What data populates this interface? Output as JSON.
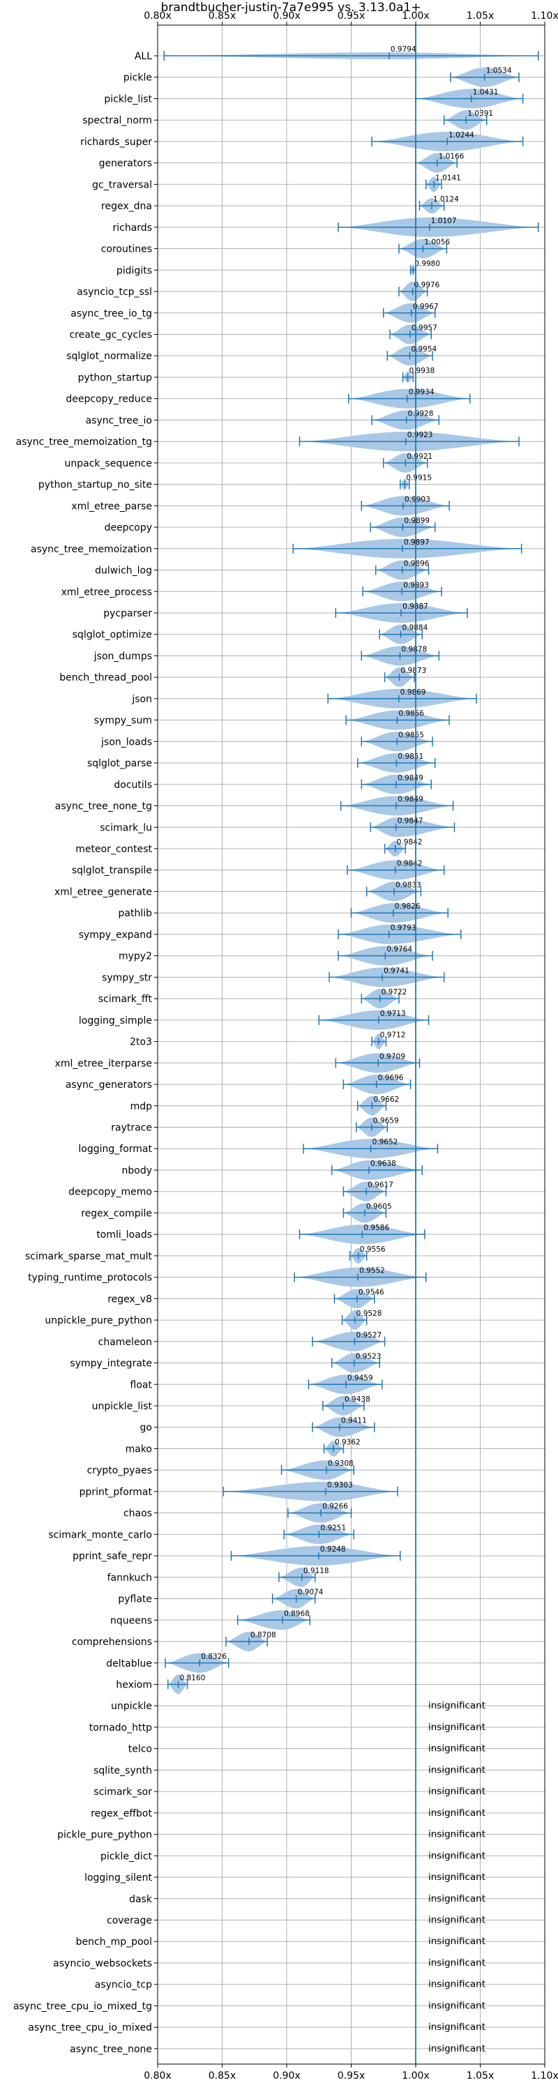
{
  "chart_data": {
    "type": "violin",
    "title": "brandtbucher-justin-7a7e995 vs. 3.13.0a1+",
    "xlim": [
      0.8,
      1.1
    ],
    "x_ticks": [
      0.8,
      0.85,
      0.9,
      0.95,
      1.0,
      1.05,
      1.1
    ],
    "x_tick_labels": [
      "0.80x",
      "0.85x",
      "0.90x",
      "0.95x",
      "1.00x",
      "1.05x",
      "1.10x"
    ],
    "reference_line": 1.0,
    "grid": true,
    "colors": {
      "violin": "#a9c8e6",
      "whisker": "#1f77b4",
      "reference": "#1f77b4",
      "grid": "#b0b0b0"
    },
    "insignificant_text": "insignificant",
    "benchmarks": [
      {
        "name": "ALL",
        "value": 0.9794,
        "label": "0.9794",
        "min": 0.805,
        "max": 1.095,
        "width": 0.35
      },
      {
        "name": "pickle",
        "value": 1.0534,
        "label": "1.0534",
        "min": 1.027,
        "max": 1.08,
        "width": 1.0
      },
      {
        "name": "pickle_list",
        "value": 1.0431,
        "label": "1.0431",
        "min": 1.0,
        "max": 1.083,
        "width": 1.0
      },
      {
        "name": "spectral_norm",
        "value": 1.0391,
        "label": "1.0391",
        "min": 1.022,
        "max": 1.055,
        "width": 1.0
      },
      {
        "name": "richards_super",
        "value": 1.0244,
        "label": "1.0244",
        "min": 0.966,
        "max": 1.083,
        "width": 1.0
      },
      {
        "name": "generators",
        "value": 1.0166,
        "label": "1.0166",
        "min": 1.0,
        "max": 1.032,
        "width": 1.0
      },
      {
        "name": "gc_traversal",
        "value": 1.0141,
        "label": "1.0141",
        "min": 1.008,
        "max": 1.02,
        "width": 0.8
      },
      {
        "name": "regex_dna",
        "value": 1.0124,
        "label": "1.0124",
        "min": 1.003,
        "max": 1.022,
        "width": 0.8
      },
      {
        "name": "richards",
        "value": 1.0107,
        "label": "1.0107",
        "min": 0.94,
        "max": 1.095,
        "width": 1.0
      },
      {
        "name": "coroutines",
        "value": 1.0056,
        "label": "1.0056",
        "min": 0.987,
        "max": 1.024,
        "width": 1.0
      },
      {
        "name": "pidigits",
        "value": 0.998,
        "label": "0.9980",
        "min": 0.996,
        "max": 1.0,
        "width": 0.6
      },
      {
        "name": "asyncio_tcp_ssl",
        "value": 0.9976,
        "label": "0.9976",
        "min": 0.987,
        "max": 1.009,
        "width": 1.0
      },
      {
        "name": "async_tree_io_tg",
        "value": 0.9967,
        "label": "0.9967",
        "min": 0.975,
        "max": 1.015,
        "width": 1.0
      },
      {
        "name": "create_gc_cycles",
        "value": 0.9957,
        "label": "0.9957",
        "min": 0.98,
        "max": 1.012,
        "width": 1.0
      },
      {
        "name": "sqlglot_normalize",
        "value": 0.9954,
        "label": "0.9954",
        "min": 0.978,
        "max": 1.013,
        "width": 1.0
      },
      {
        "name": "python_startup",
        "value": 0.9938,
        "label": "0.9938",
        "min": 0.99,
        "max": 0.998,
        "width": 0.6
      },
      {
        "name": "deepcopy_reduce",
        "value": 0.9934,
        "label": "0.9934",
        "min": 0.948,
        "max": 1.042,
        "width": 1.0
      },
      {
        "name": "async_tree_io",
        "value": 0.9928,
        "label": "0.9928",
        "min": 0.966,
        "max": 1.018,
        "width": 1.0
      },
      {
        "name": "async_tree_memoization_tg",
        "value": 0.9923,
        "label": "0.9923",
        "min": 0.91,
        "max": 1.08,
        "width": 1.0
      },
      {
        "name": "unpack_sequence",
        "value": 0.9921,
        "label": "0.9921",
        "min": 0.975,
        "max": 1.009,
        "width": 1.0
      },
      {
        "name": "python_startup_no_site",
        "value": 0.9915,
        "label": "0.9915",
        "min": 0.988,
        "max": 0.995,
        "width": 0.6
      },
      {
        "name": "xml_etree_parse",
        "value": 0.9903,
        "label": "0.9903",
        "min": 0.958,
        "max": 1.026,
        "width": 1.0
      },
      {
        "name": "deepcopy",
        "value": 0.9899,
        "label": "0.9899",
        "min": 0.965,
        "max": 1.015,
        "width": 1.0
      },
      {
        "name": "async_tree_memoization",
        "value": 0.9897,
        "label": "0.9897",
        "min": 0.905,
        "max": 1.082,
        "width": 1.0
      },
      {
        "name": "dulwich_log",
        "value": 0.9896,
        "label": "0.9896",
        "min": 0.969,
        "max": 1.01,
        "width": 1.0
      },
      {
        "name": "xml_etree_process",
        "value": 0.9893,
        "label": "0.9893",
        "min": 0.959,
        "max": 1.02,
        "width": 1.0
      },
      {
        "name": "pycparser",
        "value": 0.9887,
        "label": "0.9887",
        "min": 0.938,
        "max": 1.04,
        "width": 1.0
      },
      {
        "name": "sqlglot_optimize",
        "value": 0.9884,
        "label": "0.9884",
        "min": 0.972,
        "max": 1.005,
        "width": 1.0
      },
      {
        "name": "json_dumps",
        "value": 0.9878,
        "label": "0.9878",
        "min": 0.958,
        "max": 1.018,
        "width": 1.0
      },
      {
        "name": "bench_thread_pool",
        "value": 0.9873,
        "label": "0.9873",
        "min": 0.976,
        "max": 0.999,
        "width": 1.0
      },
      {
        "name": "json",
        "value": 0.9869,
        "label": "0.9869",
        "min": 0.932,
        "max": 1.047,
        "width": 1.0
      },
      {
        "name": "sympy_sum",
        "value": 0.9856,
        "label": "0.9856",
        "min": 0.946,
        "max": 1.026,
        "width": 1.0
      },
      {
        "name": "json_loads",
        "value": 0.9855,
        "label": "0.9855",
        "min": 0.958,
        "max": 1.013,
        "width": 1.0
      },
      {
        "name": "sqlglot_parse",
        "value": 0.9851,
        "label": "0.9851",
        "min": 0.955,
        "max": 1.015,
        "width": 1.0
      },
      {
        "name": "docutils",
        "value": 0.9849,
        "label": "0.9849",
        "min": 0.958,
        "max": 1.012,
        "width": 1.0
      },
      {
        "name": "async_tree_none_tg",
        "value": 0.9849,
        "label": "0.9849",
        "min": 0.942,
        "max": 1.029,
        "width": 1.0
      },
      {
        "name": "scimark_lu",
        "value": 0.9847,
        "label": "0.9847",
        "min": 0.965,
        "max": 1.03,
        "width": 1.0
      },
      {
        "name": "meteor_contest",
        "value": 0.9842,
        "label": "0.9842",
        "min": 0.976,
        "max": 0.992,
        "width": 0.8
      },
      {
        "name": "sqlglot_transpile",
        "value": 0.9842,
        "label": "0.9842",
        "min": 0.947,
        "max": 1.022,
        "width": 1.0
      },
      {
        "name": "xml_etree_generate",
        "value": 0.9833,
        "label": "0.9833",
        "min": 0.962,
        "max": 1.004,
        "width": 1.0
      },
      {
        "name": "pathlib",
        "value": 0.9826,
        "label": "0.9826",
        "min": 0.95,
        "max": 1.025,
        "width": 1.0
      },
      {
        "name": "sympy_expand",
        "value": 0.9793,
        "label": "0.9793",
        "min": 0.94,
        "max": 1.035,
        "width": 1.0
      },
      {
        "name": "mypy2",
        "value": 0.9764,
        "label": "0.9764",
        "min": 0.94,
        "max": 1.013,
        "width": 1.0
      },
      {
        "name": "sympy_str",
        "value": 0.9741,
        "label": "0.9741",
        "min": 0.933,
        "max": 1.022,
        "width": 1.0
      },
      {
        "name": "scimark_fft",
        "value": 0.9722,
        "label": "0.9722",
        "min": 0.958,
        "max": 0.987,
        "width": 1.0
      },
      {
        "name": "logging_simple",
        "value": 0.9713,
        "label": "0.9713",
        "min": 0.925,
        "max": 1.01,
        "width": 1.0
      },
      {
        "name": "2to3",
        "value": 0.9712,
        "label": "0.9712",
        "min": 0.966,
        "max": 0.977,
        "width": 0.8
      },
      {
        "name": "xml_etree_iterparse",
        "value": 0.9709,
        "label": "0.9709",
        "min": 0.938,
        "max": 1.003,
        "width": 1.0
      },
      {
        "name": "async_generators",
        "value": 0.9696,
        "label": "0.9696",
        "min": 0.944,
        "max": 0.996,
        "width": 1.0
      },
      {
        "name": "mdp",
        "value": 0.9662,
        "label": "0.9662",
        "min": 0.955,
        "max": 0.977,
        "width": 1.0
      },
      {
        "name": "raytrace",
        "value": 0.9659,
        "label": "0.9659",
        "min": 0.954,
        "max": 0.978,
        "width": 1.0
      },
      {
        "name": "logging_format",
        "value": 0.9652,
        "label": "0.9652",
        "min": 0.913,
        "max": 1.017,
        "width": 1.0
      },
      {
        "name": "nbody",
        "value": 0.9638,
        "label": "0.9638",
        "min": 0.935,
        "max": 1.005,
        "width": 1.0
      },
      {
        "name": "deepcopy_memo",
        "value": 0.9617,
        "label": "0.9617",
        "min": 0.944,
        "max": 0.977,
        "width": 1.0
      },
      {
        "name": "regex_compile",
        "value": 0.9605,
        "label": "0.9605",
        "min": 0.944,
        "max": 0.977,
        "width": 1.0
      },
      {
        "name": "tomli_loads",
        "value": 0.9586,
        "label": "0.9586",
        "min": 0.91,
        "max": 1.007,
        "width": 1.0
      },
      {
        "name": "scimark_sparse_mat_mult",
        "value": 0.9556,
        "label": "0.9556",
        "min": 0.949,
        "max": 0.962,
        "width": 0.8
      },
      {
        "name": "typing_runtime_protocols",
        "value": 0.9552,
        "label": "0.9552",
        "min": 0.906,
        "max": 1.008,
        "width": 1.0
      },
      {
        "name": "regex_v8",
        "value": 0.9546,
        "label": "0.9546",
        "min": 0.937,
        "max": 0.968,
        "width": 1.0
      },
      {
        "name": "unpickle_pure_python",
        "value": 0.9528,
        "label": "0.9528",
        "min": 0.943,
        "max": 0.962,
        "width": 1.0
      },
      {
        "name": "chameleon",
        "value": 0.9527,
        "label": "0.9527",
        "min": 0.92,
        "max": 0.976,
        "width": 1.0
      },
      {
        "name": "sympy_integrate",
        "value": 0.9523,
        "label": "0.9523",
        "min": 0.935,
        "max": 0.972,
        "width": 1.0
      },
      {
        "name": "float",
        "value": 0.9459,
        "label": "0.9459",
        "min": 0.917,
        "max": 0.974,
        "width": 1.0
      },
      {
        "name": "unpickle_list",
        "value": 0.9438,
        "label": "0.9438",
        "min": 0.928,
        "max": 0.96,
        "width": 1.0
      },
      {
        "name": "go",
        "value": 0.9411,
        "label": "0.9411",
        "min": 0.92,
        "max": 0.968,
        "width": 1.0
      },
      {
        "name": "mako",
        "value": 0.9362,
        "label": "0.9362",
        "min": 0.929,
        "max": 0.944,
        "width": 0.8
      },
      {
        "name": "crypto_pyaes",
        "value": 0.9308,
        "label": "0.9308",
        "min": 0.896,
        "max": 0.952,
        "width": 1.0
      },
      {
        "name": "pprint_pformat",
        "value": 0.9303,
        "label": "0.9303",
        "min": 0.851,
        "max": 0.986,
        "width": 1.0
      },
      {
        "name": "chaos",
        "value": 0.9266,
        "label": "0.9266",
        "min": 0.901,
        "max": 0.95,
        "width": 1.0
      },
      {
        "name": "scimark_monte_carlo",
        "value": 0.9251,
        "label": "0.9251",
        "min": 0.898,
        "max": 0.952,
        "width": 1.0
      },
      {
        "name": "pprint_safe_repr",
        "value": 0.9248,
        "label": "0.9248",
        "min": 0.857,
        "max": 0.988,
        "width": 1.0
      },
      {
        "name": "fannkuch",
        "value": 0.9118,
        "label": "0.9118",
        "min": 0.894,
        "max": 0.922,
        "width": 1.0
      },
      {
        "name": "pyflate",
        "value": 0.9074,
        "label": "0.9074",
        "min": 0.889,
        "max": 0.922,
        "width": 1.0
      },
      {
        "name": "nqueens",
        "value": 0.8968,
        "label": "0.8968",
        "min": 0.862,
        "max": 0.918,
        "width": 1.0
      },
      {
        "name": "comprehensions",
        "value": 0.8708,
        "label": "0.8708",
        "min": 0.853,
        "max": 0.885,
        "width": 1.0
      },
      {
        "name": "deltablue",
        "value": 0.8326,
        "label": "0.8326",
        "min": 0.806,
        "max": 0.855,
        "width": 1.0
      },
      {
        "name": "hexiom",
        "value": 0.816,
        "label": "0.8160",
        "min": 0.808,
        "max": 0.823,
        "width": 1.0
      },
      {
        "name": "unpickle",
        "insignificant": true
      },
      {
        "name": "tornado_http",
        "insignificant": true
      },
      {
        "name": "telco",
        "insignificant": true
      },
      {
        "name": "sqlite_synth",
        "insignificant": true
      },
      {
        "name": "scimark_sor",
        "insignificant": true
      },
      {
        "name": "regex_effbot",
        "insignificant": true
      },
      {
        "name": "pickle_pure_python",
        "insignificant": true
      },
      {
        "name": "pickle_dict",
        "insignificant": true
      },
      {
        "name": "logging_silent",
        "insignificant": true
      },
      {
        "name": "dask",
        "insignificant": true
      },
      {
        "name": "coverage",
        "insignificant": true
      },
      {
        "name": "bench_mp_pool",
        "insignificant": true
      },
      {
        "name": "asyncio_websockets",
        "insignificant": true
      },
      {
        "name": "asyncio_tcp",
        "insignificant": true
      },
      {
        "name": "async_tree_cpu_io_mixed_tg",
        "insignificant": true
      },
      {
        "name": "async_tree_cpu_io_mixed",
        "insignificant": true
      },
      {
        "name": "async_tree_none",
        "insignificant": true
      }
    ]
  }
}
